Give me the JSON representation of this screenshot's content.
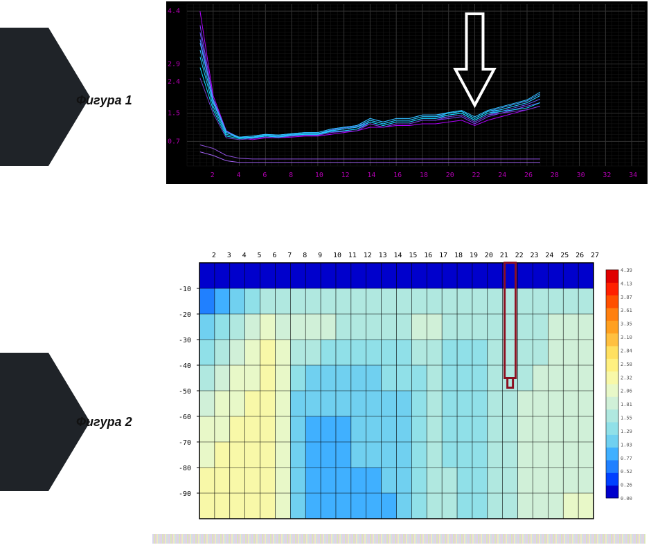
{
  "figure1_label": "Фигура 1",
  "figure2_label": "Фигура 2",
  "chart1": {
    "type": "line",
    "background_color": "#000000",
    "grid_color": "#333333",
    "grid_fine_color": "#1a1a1a",
    "axis_color": "#000000",
    "tick_color": "#b000b0",
    "tick_fontsize": 10,
    "xlim": [
      0,
      35
    ],
    "ylim": [
      0,
      4.6
    ],
    "xtick_step": 2,
    "xtick_start": 2,
    "yticks": [
      0.7,
      1.5,
      2.4,
      2.9,
      4.4
    ],
    "series_colors": [
      "#b000ff",
      "#8040ff",
      "#6060ff",
      "#5080ff",
      "#40a0ff",
      "#30c0ff",
      "#20d0ff",
      "#10e0ff",
      "#7040d0",
      "#9050e0",
      "#a060f0"
    ],
    "line_width": 1,
    "series": [
      [
        4.4,
        2.0,
        1.0,
        0.8,
        0.75,
        0.8,
        0.8,
        0.82,
        0.85,
        0.85,
        0.9,
        0.95,
        1.0,
        1.1,
        1.1,
        1.15,
        1.15,
        1.2,
        1.2,
        1.25,
        1.3,
        1.15,
        1.3,
        1.4,
        1.5,
        1.6,
        1.7
      ],
      [
        4.0,
        1.9,
        1.0,
        0.8,
        0.8,
        0.85,
        0.82,
        0.85,
        0.88,
        0.88,
        0.95,
        1.0,
        1.05,
        1.2,
        1.1,
        1.2,
        1.2,
        1.3,
        1.3,
        1.35,
        1.4,
        1.2,
        1.4,
        1.5,
        1.6,
        1.7,
        1.8
      ],
      [
        3.8,
        1.8,
        0.95,
        0.8,
        0.8,
        0.85,
        0.83,
        0.88,
        0.9,
        0.9,
        1.0,
        1.05,
        1.1,
        1.25,
        1.15,
        1.25,
        1.25,
        1.35,
        1.35,
        1.4,
        1.45,
        1.25,
        1.45,
        1.55,
        1.65,
        1.75,
        1.9
      ],
      [
        3.6,
        1.85,
        0.95,
        0.8,
        0.82,
        0.88,
        0.85,
        0.9,
        0.92,
        0.92,
        1.02,
        1.08,
        1.12,
        1.3,
        1.2,
        1.3,
        1.3,
        1.4,
        1.4,
        1.45,
        1.5,
        1.3,
        1.5,
        1.6,
        1.7,
        1.8,
        2.0
      ],
      [
        3.5,
        1.9,
        0.98,
        0.82,
        0.85,
        0.9,
        0.88,
        0.92,
        0.95,
        0.95,
        1.05,
        1.1,
        1.15,
        1.35,
        1.25,
        1.35,
        1.35,
        1.45,
        1.45,
        1.5,
        1.55,
        1.35,
        1.55,
        1.65,
        1.75,
        1.85,
        2.05
      ],
      [
        3.3,
        1.8,
        0.95,
        0.82,
        0.85,
        0.9,
        0.88,
        0.92,
        0.95,
        0.95,
        1.05,
        1.1,
        1.15,
        1.35,
        1.25,
        1.35,
        1.35,
        1.45,
        1.45,
        1.52,
        1.58,
        1.4,
        1.58,
        1.68,
        1.78,
        1.88,
        2.1
      ],
      [
        3.1,
        1.7,
        0.9,
        0.8,
        0.82,
        0.88,
        0.85,
        0.9,
        0.92,
        0.92,
        1.0,
        1.05,
        1.1,
        1.3,
        1.2,
        1.3,
        1.3,
        1.4,
        1.4,
        1.5,
        1.55,
        1.35,
        1.55,
        1.6,
        1.7,
        1.8,
        2.0
      ],
      [
        2.8,
        1.6,
        0.85,
        0.78,
        0.8,
        0.85,
        0.82,
        0.87,
        0.9,
        0.9,
        0.98,
        1.0,
        1.05,
        1.25,
        1.15,
        1.25,
        1.25,
        1.35,
        1.35,
        1.45,
        1.5,
        1.3,
        1.5,
        1.55,
        1.6,
        1.65,
        1.8
      ],
      [
        2.5,
        1.5,
        0.8,
        0.75,
        0.78,
        0.82,
        0.8,
        0.85,
        0.87,
        0.87,
        0.95,
        0.98,
        1.0,
        1.2,
        1.1,
        1.2,
        1.2,
        1.3,
        1.3,
        1.4,
        1.45,
        1.25,
        1.45,
        1.5,
        1.55,
        1.6,
        1.7
      ],
      [
        0.6,
        0.5,
        0.3,
        0.22,
        0.2,
        0.2,
        0.2,
        0.2,
        0.2,
        0.2,
        0.2,
        0.2,
        0.2,
        0.2,
        0.2,
        0.2,
        0.2,
        0.2,
        0.2,
        0.2,
        0.2,
        0.2,
        0.2,
        0.2,
        0.2,
        0.2,
        0.2
      ],
      [
        0.4,
        0.3,
        0.15,
        0.1,
        0.1,
        0.1,
        0.1,
        0.1,
        0.1,
        0.1,
        0.1,
        0.1,
        0.1,
        0.1,
        0.1,
        0.1,
        0.1,
        0.1,
        0.1,
        0.1,
        0.1,
        0.1,
        0.1,
        0.1,
        0.1,
        0.1,
        0.1
      ]
    ],
    "arrow": {
      "x": 22,
      "color": "#ffffff",
      "stroke_width": 4
    }
  },
  "chart2": {
    "type": "heatmap",
    "background_color": "#ffffff",
    "grid_color": "#000000",
    "tick_color": "#000000",
    "tick_fontsize": 10,
    "xlim": [
      1,
      27
    ],
    "ylim": [
      -100,
      0
    ],
    "xtick_step": 1,
    "xtick_start": 2,
    "ytick_step": 10,
    "colorbar": {
      "ticks": [
        0.0,
        0.26,
        0.52,
        0.77,
        1.03,
        1.29,
        1.55,
        1.81,
        2.06,
        2.32,
        2.58,
        2.84,
        3.1,
        3.35,
        3.61,
        3.87,
        4.13,
        4.39
      ],
      "colors": [
        "#0000cc",
        "#0040ff",
        "#2080ff",
        "#40b0ff",
        "#70d0f0",
        "#90e0e8",
        "#b0e8e0",
        "#d0f0d8",
        "#e8f8c8",
        "#f8f8a8",
        "#fff080",
        "#ffe060",
        "#ffc040",
        "#ffa020",
        "#ff8010",
        "#ff5000",
        "#ff2000",
        "#e00000"
      ]
    },
    "cells": {
      "cols": 26,
      "rows": 10,
      "values": [
        [
          16,
          16,
          16,
          16,
          16,
          16,
          16,
          16,
          16,
          16,
          16,
          16,
          16,
          16,
          16,
          16,
          16,
          16,
          16,
          16,
          16,
          16,
          16,
          16,
          16,
          16
        ],
        [
          14,
          13,
          12,
          11,
          10,
          10,
          10,
          10,
          10,
          10,
          10,
          10,
          10,
          10,
          10,
          10,
          10,
          10,
          10,
          10,
          10,
          10,
          10,
          10,
          10,
          10
        ],
        [
          12,
          11,
          10,
          9,
          8,
          9,
          9,
          9,
          9,
          10,
          10,
          10,
          10,
          10,
          9,
          9,
          10,
          10,
          10,
          10,
          10,
          10,
          10,
          9,
          9,
          9
        ],
        [
          11,
          10,
          9,
          8,
          7,
          8,
          10,
          10,
          11,
          11,
          11,
          11,
          11,
          11,
          10,
          10,
          11,
          11,
          11,
          10,
          10,
          10,
          10,
          9,
          9,
          9
        ],
        [
          10,
          9,
          8,
          8,
          7,
          8,
          11,
          12,
          12,
          12,
          12,
          12,
          11,
          11,
          11,
          10,
          11,
          11,
          11,
          10,
          10,
          10,
          9,
          9,
          9,
          9
        ],
        [
          9,
          8,
          8,
          7,
          7,
          8,
          12,
          12,
          12,
          12,
          12,
          12,
          12,
          12,
          11,
          10,
          11,
          11,
          11,
          10,
          10,
          9,
          9,
          9,
          9,
          9
        ],
        [
          8,
          8,
          7,
          7,
          7,
          8,
          12,
          13,
          13,
          13,
          12,
          12,
          12,
          12,
          11,
          10,
          11,
          11,
          11,
          10,
          10,
          9,
          9,
          9,
          9,
          9
        ],
        [
          8,
          7,
          7,
          7,
          7,
          8,
          12,
          13,
          13,
          13,
          12,
          12,
          12,
          12,
          11,
          10,
          11,
          11,
          11,
          10,
          10,
          9,
          9,
          9,
          9,
          9
        ],
        [
          7,
          7,
          7,
          7,
          7,
          8,
          12,
          13,
          13,
          13,
          13,
          13,
          12,
          12,
          11,
          10,
          10,
          11,
          11,
          10,
          10,
          9,
          9,
          9,
          9,
          9
        ],
        [
          7,
          7,
          7,
          7,
          7,
          8,
          12,
          13,
          13,
          13,
          13,
          13,
          13,
          12,
          11,
          10,
          10,
          11,
          11,
          10,
          10,
          9,
          9,
          9,
          8,
          8
        ]
      ],
      "level_to_color": {
        "7": "#f8f8a8",
        "8": "#e8f8c8",
        "9": "#d0f0d8",
        "10": "#b0e8e0",
        "11": "#90e0e8",
        "12": "#70d0f0",
        "13": "#40b0ff",
        "14": "#2080ff",
        "15": "#0040ff",
        "16": "#0000cc"
      }
    },
    "marker": {
      "x": 21.5,
      "y_top": 0,
      "y_bot": -45,
      "color": "#8b1020",
      "stroke_width": 3
    }
  }
}
